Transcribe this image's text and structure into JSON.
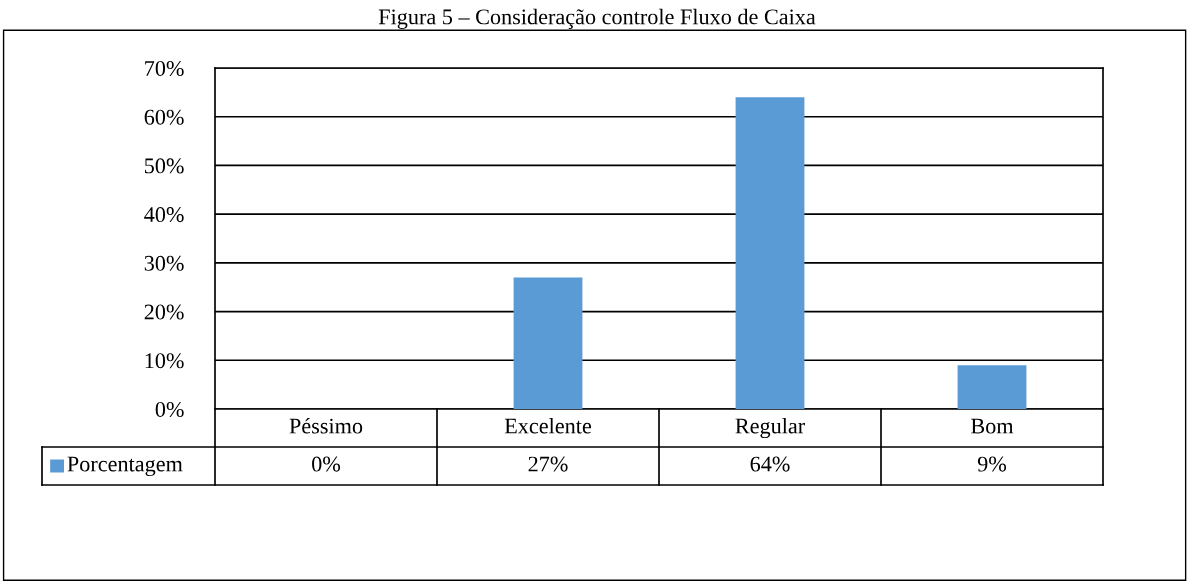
{
  "chart_data": {
    "type": "bar",
    "title": "Figura 5 – Consideração controle Fluxo de Caixa",
    "categories": [
      "Péssimo",
      "Excelente",
      "Regular",
      "Bom"
    ],
    "series": [
      {
        "name": "Porcentagem",
        "color": "#5b9bd5",
        "values": [
          0,
          27,
          64,
          9
        ],
        "value_labels": [
          "0%",
          "27%",
          "64%",
          "9%"
        ]
      }
    ],
    "ylim": [
      0,
      70
    ],
    "yticks": [
      {
        "value": 0,
        "label": "0%"
      },
      {
        "value": 10,
        "label": "10%"
      },
      {
        "value": 20,
        "label": "20%"
      },
      {
        "value": 30,
        "label": "30%"
      },
      {
        "value": 40,
        "label": "40%"
      },
      {
        "value": 50,
        "label": "50%"
      },
      {
        "value": 60,
        "label": "60%"
      },
      {
        "value": 70,
        "label": "70%"
      }
    ],
    "grid": "y",
    "legend": "bottom"
  }
}
